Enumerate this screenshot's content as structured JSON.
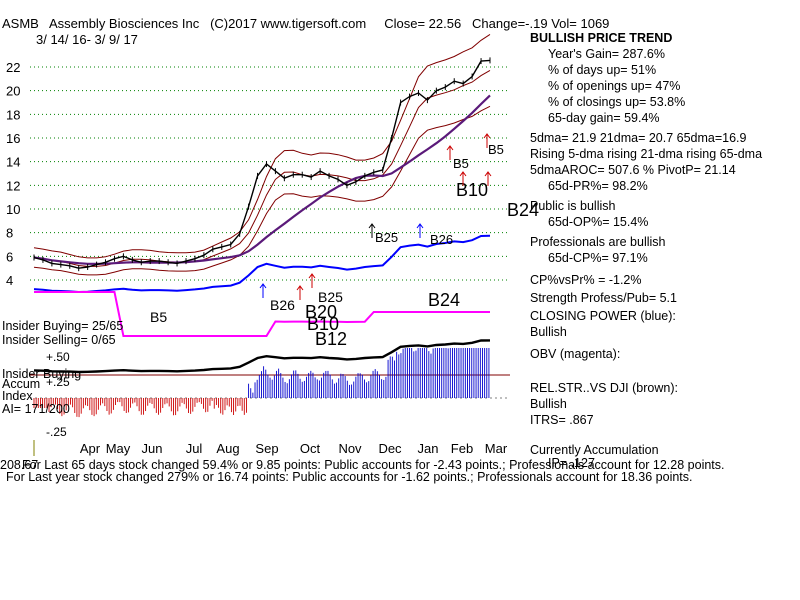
{
  "header": {
    "symbol": "ASMB",
    "company": "Assembly Biosciences Inc",
    "copyright": "(C)2017 www.tigersoft.com",
    "close": "Close=  22.56",
    "change": "Change=-.19",
    "vol": "Vol= 1069",
    "date_range": "3/ 14/ 16-  3/ 9/ 17"
  },
  "panel": {
    "trend_title": "BULLISH PRICE TREND",
    "years_gain": "Year's Gain= 287.6%",
    "days_up": "% of days up= 51%",
    "openings_up": "% of openings up= 47%",
    "closings_up": "% of closings up= 53.8%",
    "gain_65": "65-day gain= 59.4%",
    "dma": "5dma= 21.9  21dma= 20.7  65dma=16.9",
    "rising": "Rising 5-dma  rising 21-dma  rising 65-dma",
    "aroc": "5dmaAROC= 507.6 %  PivotP= 21.14",
    "pr": "65d-PR%= 98.2%",
    "public": "Public is bullish",
    "op": "65d-OP%= 15.4%",
    "professionals": "Professionals are bullish",
    "cp": "65d-CP%= 97.1%",
    "cpvspr": "CP%vsPr% = -1.2%",
    "strength": "Strength Profess/Pub= 5.1",
    "closing_power": "CLOSING POWER (blue):",
    "closing_power_state": "Bullish",
    "obv": "OBV (magenta):",
    "relstr": "REL.STR..VS DJI (brown):",
    "relstr_state": "Bullish",
    "itrs": "ITRS= .867",
    "accum_title": "Currently Accumulation",
    "ip": "IP=  .127"
  },
  "left_labels": {
    "insider_buying": "Insider Buying= 25/65",
    "insider_selling": "Insider Selling= 0/65",
    "insider_buying_tag": "Insider Buying",
    "accum": "Accum",
    "index": "Index",
    "ai": "AI= 171/200"
  },
  "footer": {
    "line1_prefix": "208.67",
    "line1": "For Last 65 days stock changed  59.4% or  9.85 points:  Public accounts for -2.43 points.;  Professionals account for  12.28 points.",
    "line2": "For Last year stock changed  279% or  16.74 points:  Public accounts for -1.62 points.;  Professionals account for  18.36 points."
  },
  "colors": {
    "price": "#000000",
    "ma": "#800000",
    "ma65": "#5b1a7a",
    "band": "#800000",
    "cp": "#0000ff",
    "obv": "#ff00ff",
    "rs": "#000000",
    "accum_pos": "#0000cc",
    "accum_neg": "#cc0000",
    "grid": "#008000",
    "signal_buy": "#cc0000",
    "signal_blue": "#0000ff"
  },
  "chart_data": {
    "type": "line",
    "title": "ASMB  Assembly Biosciences Inc",
    "y_ticks": [
      4,
      6,
      8,
      10,
      12,
      14,
      16,
      18,
      20,
      22
    ],
    "ylim": [
      3,
      25
    ],
    "months": [
      "Apr",
      "May",
      "Jun",
      "Jul",
      "Aug",
      "Sep",
      "Oct",
      "Nov",
      "Dec",
      "Jan",
      "Feb",
      "Mar"
    ],
    "accum_ticks": [
      "+.50",
      "+.25",
      "-.25"
    ],
    "price_series": {
      "name": "Price",
      "x": [
        0,
        5,
        10,
        15,
        20,
        25,
        30,
        35,
        40,
        45,
        50,
        55,
        60,
        65,
        70,
        75,
        80,
        85,
        90,
        95,
        100,
        105,
        110,
        115,
        120,
        125,
        130,
        135,
        140,
        145,
        150,
        155,
        160,
        165,
        170,
        175,
        180,
        185,
        190,
        195,
        200,
        205,
        210,
        215,
        220,
        225,
        230,
        235,
        240,
        245,
        250,
        255
      ],
      "values": [
        5.9,
        5.7,
        5.4,
        5.3,
        5.2,
        5.0,
        5.1,
        5.3,
        5.5,
        5.8,
        6.0,
        5.7,
        5.5,
        5.6,
        5.6,
        5.5,
        5.4,
        5.6,
        5.8,
        6.1,
        6.6,
        6.8,
        7.0,
        7.9,
        10.2,
        12.8,
        13.8,
        13.2,
        12.6,
        12.9,
        12.9,
        12.7,
        13.2,
        12.8,
        12.5,
        12.0,
        12.3,
        12.8,
        13.1,
        13.3,
        16.0,
        19.0,
        19.5,
        19.8,
        19.2,
        20.0,
        20.3,
        20.8,
        20.6,
        21.2,
        22.5,
        22.56
      ]
    },
    "signals": [
      "B5",
      "B26",
      "B25",
      "B20",
      "B10",
      "B12",
      "B25",
      "B26",
      "B5",
      "B10",
      "B24",
      "B5",
      "B24"
    ]
  }
}
